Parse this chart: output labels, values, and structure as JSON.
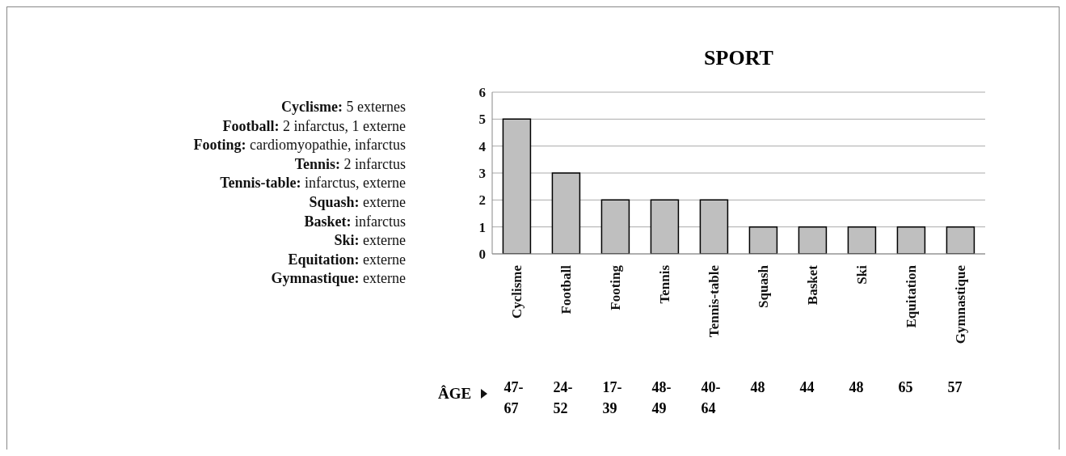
{
  "chart_data": {
    "type": "bar",
    "title": "SPORT",
    "categories": [
      "Cyclisme",
      "Football",
      "Footing",
      "Tennis",
      "Tennis-table",
      "Squash",
      "Basket",
      "Ski",
      "Equitation",
      "Gymnastique"
    ],
    "values": [
      5,
      3,
      2,
      2,
      2,
      1,
      1,
      1,
      1,
      1
    ],
    "color": "#bfbfbf",
    "ylim": [
      0,
      6
    ],
    "yticks": [
      0,
      1,
      2,
      3,
      4,
      5,
      6
    ],
    "grid": "y",
    "annotations": [
      "Cyclisme: 5 externes",
      "Football: 2 infarctus, 1 externe",
      "Footing: cardiomyopathie, infarctus",
      "Tennis: 2 infarctus",
      "Tennis-table: infarctus, externe",
      "Squash: externe",
      "Basket: infarctus",
      "Ski: externe",
      "Equitation: externe",
      "Gymnastique: externe",
      "ÂGE",
      "47-67",
      "24-52",
      "17-39",
      "48-49",
      "40-64",
      "48",
      "44",
      "48",
      "65",
      "57"
    ]
  }
}
